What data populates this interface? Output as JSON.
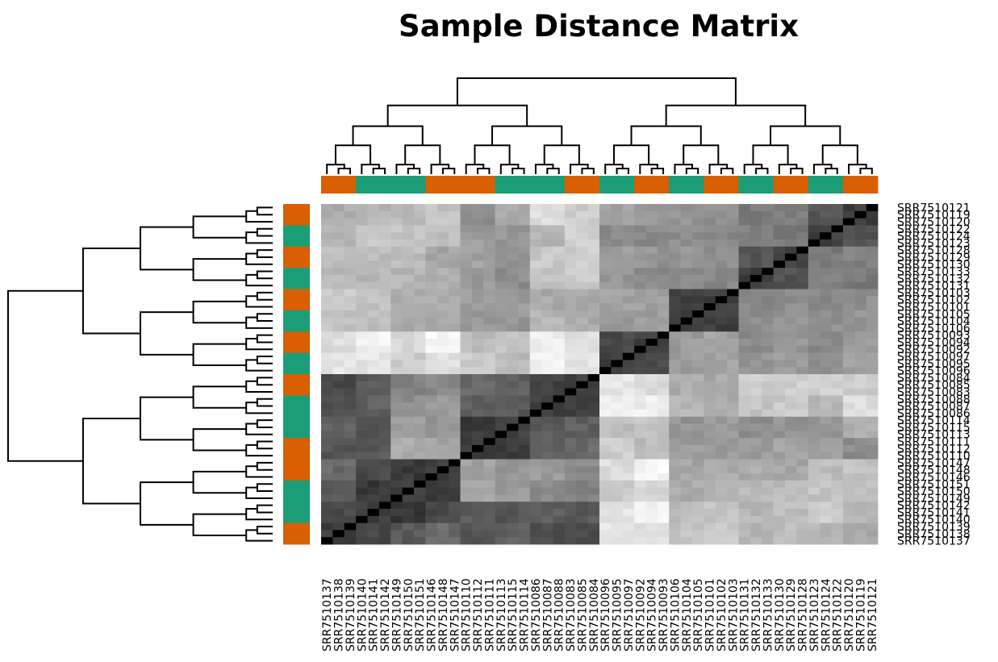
{
  "chart_data": {
    "type": "heatmap",
    "title": "Sample Distance Matrix",
    "xlabel": "",
    "ylabel": "",
    "column_labels": [
      "SRR7510137",
      "SRR7510138",
      "SRR7510139",
      "SRR7510140",
      "SRR7510141",
      "SRR7510142",
      "SRR7510149",
      "SRR7510150",
      "SRR7510151",
      "SRR7510146",
      "SRR7510148",
      "SRR7510147",
      "SRR7510110",
      "SRR7510112",
      "SRR7510111",
      "SRR7510113",
      "SRR7510115",
      "SRR7510114",
      "SRR7510086",
      "SRR7510087",
      "SRR7510088",
      "SRR7510083",
      "SRR7510085",
      "SRR7510084",
      "SRR7510096",
      "SRR7510095",
      "SRR7510097",
      "SRR7510092",
      "SRR7510094",
      "SRR7510093",
      "SRR7510106",
      "SRR7510104",
      "SRR7510105",
      "SRR7510101",
      "SRR7510102",
      "SRR7510103",
      "SRR7510131",
      "SRR7510132",
      "SRR7510133",
      "SRR7510130",
      "SRR7510129",
      "SRR7510128",
      "SRR7510123",
      "SRR7510124",
      "SRR7510122",
      "SRR7510120",
      "SRR7510119",
      "SRR7510121"
    ],
    "row_labels": [
      "SRR7510121",
      "SRR7510119",
      "SRR7510120",
      "SRR7510122",
      "SRR7510124",
      "SRR7510123",
      "SRR7510128",
      "SRR7510129",
      "SRR7510130",
      "SRR7510133",
      "SRR7510132",
      "SRR7510131",
      "SRR7510103",
      "SRR7510102",
      "SRR7510101",
      "SRR7510105",
      "SRR7510104",
      "SRR7510106",
      "SRR7510093",
      "SRR7510094",
      "SRR7510092",
      "SRR7510097",
      "SRR7510095",
      "SRR7510096",
      "SRR7510084",
      "SRR7510085",
      "SRR7510083",
      "SRR7510088",
      "SRR7510087",
      "SRR7510086",
      "SRR7510114",
      "SRR7510115",
      "SRR7510113",
      "SRR7510111",
      "SRR7510112",
      "SRR7510110",
      "SRR7510147",
      "SRR7510148",
      "SRR7510146",
      "SRR7510151",
      "SRR7510150",
      "SRR7510149",
      "SRR7510142",
      "SRR7510141",
      "SRR7510140",
      "SRR7510139",
      "SRR7510138",
      "SRR7510137"
    ],
    "group_block_size": 3,
    "group_colors": [
      "#d95f02",
      "#1b9e77"
    ],
    "column_groups": [
      0,
      1,
      1,
      0,
      0,
      1,
      1,
      0,
      1,
      0,
      1,
      0,
      1,
      0,
      1,
      0
    ],
    "block_distance": [
      [
        0.0,
        0.45,
        0.5,
        0.55,
        0.48,
        0.52,
        0.46,
        0.45,
        0.92,
        0.9,
        0.82,
        0.85,
        0.78,
        0.8,
        0.78,
        0.75
      ],
      [
        0.45,
        0.0,
        0.4,
        0.45,
        0.5,
        0.48,
        0.52,
        0.5,
        0.92,
        0.96,
        0.8,
        0.82,
        0.78,
        0.8,
        0.85,
        0.78
      ],
      [
        0.5,
        0.4,
        0.0,
        0.4,
        0.75,
        0.7,
        0.65,
        0.62,
        0.85,
        0.88,
        0.75,
        0.76,
        0.78,
        0.8,
        0.82,
        0.8
      ],
      [
        0.55,
        0.45,
        0.4,
        0.0,
        0.72,
        0.68,
        0.7,
        0.65,
        0.9,
        0.98,
        0.73,
        0.75,
        0.75,
        0.73,
        0.8,
        0.82
      ],
      [
        0.48,
        0.5,
        0.75,
        0.72,
        0.0,
        0.4,
        0.52,
        0.55,
        0.85,
        0.8,
        0.7,
        0.7,
        0.7,
        0.72,
        0.7,
        0.65
      ],
      [
        0.52,
        0.48,
        0.7,
        0.68,
        0.4,
        0.0,
        0.5,
        0.52,
        0.8,
        0.82,
        0.68,
        0.7,
        0.66,
        0.68,
        0.68,
        0.75
      ],
      [
        0.46,
        0.52,
        0.65,
        0.7,
        0.52,
        0.5,
        0.0,
        0.42,
        0.96,
        0.95,
        0.78,
        0.74,
        0.82,
        0.84,
        0.78,
        0.9
      ],
      [
        0.45,
        0.5,
        0.62,
        0.65,
        0.55,
        0.52,
        0.42,
        0.0,
        0.92,
        0.9,
        0.75,
        0.74,
        0.85,
        0.85,
        0.86,
        0.85
      ],
      [
        0.92,
        0.92,
        0.85,
        0.9,
        0.85,
        0.8,
        0.96,
        0.92,
        0.0,
        0.45,
        0.7,
        0.72,
        0.68,
        0.7,
        0.66,
        0.72
      ],
      [
        0.9,
        0.96,
        0.88,
        0.98,
        0.8,
        0.82,
        0.95,
        0.9,
        0.45,
        0.0,
        0.7,
        0.72,
        0.65,
        0.68,
        0.64,
        0.7
      ],
      [
        0.82,
        0.8,
        0.75,
        0.73,
        0.7,
        0.68,
        0.78,
        0.75,
        0.7,
        0.7,
        0.0,
        0.42,
        0.66,
        0.68,
        0.66,
        0.68
      ],
      [
        0.85,
        0.82,
        0.76,
        0.75,
        0.7,
        0.7,
        0.74,
        0.74,
        0.72,
        0.72,
        0.42,
        0.0,
        0.64,
        0.66,
        0.64,
        0.66
      ],
      [
        0.78,
        0.78,
        0.78,
        0.75,
        0.7,
        0.66,
        0.82,
        0.85,
        0.68,
        0.65,
        0.66,
        0.64,
        0.0,
        0.48,
        0.62,
        0.6
      ],
      [
        0.8,
        0.8,
        0.8,
        0.73,
        0.72,
        0.68,
        0.84,
        0.85,
        0.7,
        0.68,
        0.68,
        0.66,
        0.48,
        0.0,
        0.6,
        0.62
      ],
      [
        0.78,
        0.85,
        0.82,
        0.8,
        0.7,
        0.68,
        0.78,
        0.86,
        0.66,
        0.64,
        0.66,
        0.64,
        0.62,
        0.6,
        0.0,
        0.48
      ],
      [
        0.75,
        0.78,
        0.8,
        0.82,
        0.65,
        0.75,
        0.9,
        0.85,
        0.72,
        0.7,
        0.68,
        0.66,
        0.6,
        0.62,
        0.48,
        0.0
      ]
    ],
    "grayscale": "darker = more similar (distance 0 = black on diagonal)",
    "dendrogram": "hierarchical clustering on rows and columns",
    "legend": "none"
  }
}
